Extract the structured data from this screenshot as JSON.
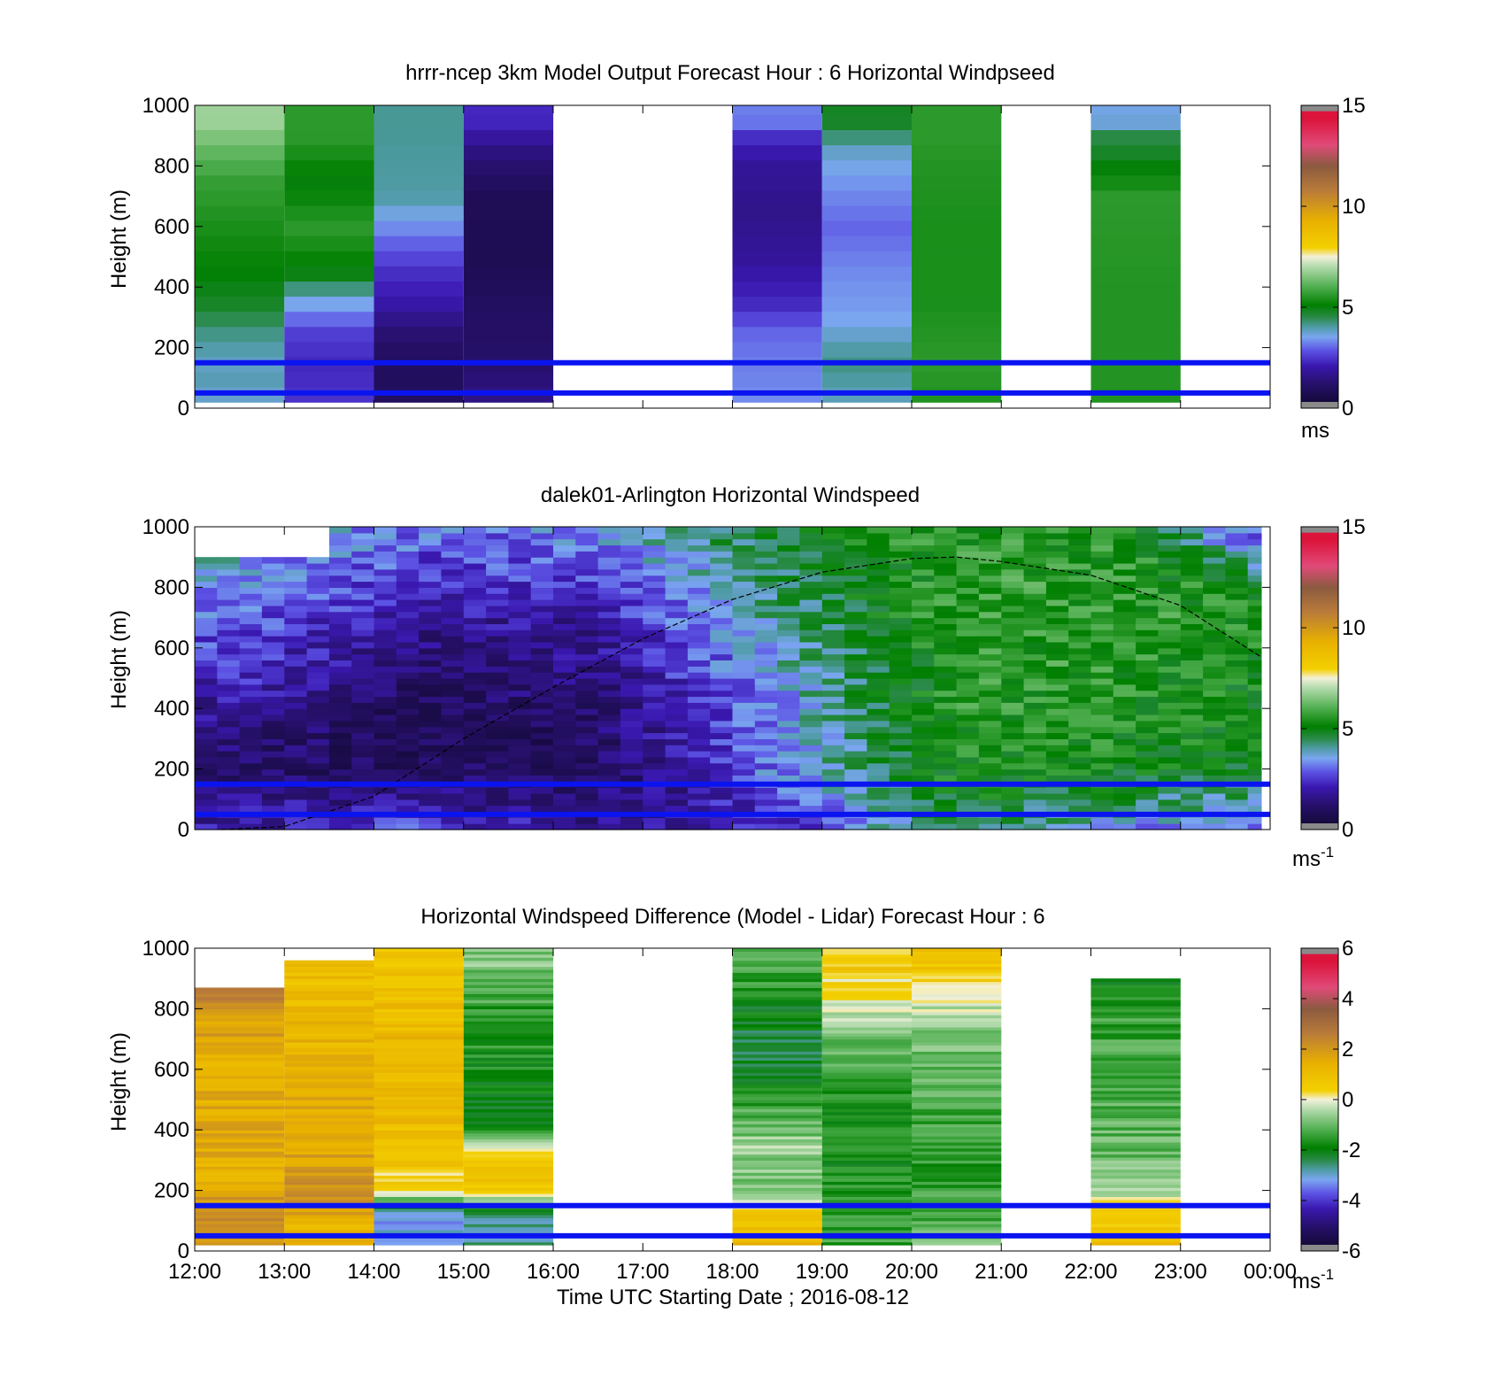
{
  "figure": {
    "xlabel": "Time UTC  Starting Date ; 2016-08-12",
    "x_tick_labels": [
      "12:00",
      "13:00",
      "14:00",
      "15:00",
      "16:00",
      "17:00",
      "18:00",
      "19:00",
      "20:00",
      "21:00",
      "22:00",
      "23:00",
      "00:00"
    ]
  },
  "chart_data": [
    {
      "type": "heatmap",
      "title": "hrrr-ncep 3km Model Output   Forecast Hour : 6 Horizontal Windpseed",
      "ylabel": "Height (m)",
      "xlim": [
        "12:00",
        "00:00"
      ],
      "ylim": [
        0,
        1000
      ],
      "y_ticks": [
        0,
        200,
        400,
        600,
        800,
        1000
      ],
      "colorbar": {
        "min": 0,
        "max": 15,
        "ticks": [
          0,
          5,
          10,
          15
        ],
        "label": "ms",
        "label_sup": ""
      },
      "reference_lines_m": [
        50,
        150
      ],
      "columns": [
        {
          "start": "12:00",
          "end": "13:00",
          "profile_speed": [
            [
              25,
              2.8
            ],
            [
              50,
              4.0
            ],
            [
              150,
              3.8
            ],
            [
              250,
              4.2
            ],
            [
              350,
              4.8
            ],
            [
              500,
              5.2
            ],
            [
              650,
              5.5
            ],
            [
              750,
              5.7
            ],
            [
              850,
              6.2
            ],
            [
              950,
              6.8
            ]
          ]
        },
        {
          "start": "13:00",
          "end": "14:00",
          "profile_speed": [
            [
              25,
              2.6
            ],
            [
              50,
              2.4
            ],
            [
              150,
              2.3
            ],
            [
              250,
              2.6
            ],
            [
              350,
              3.6
            ],
            [
              450,
              5.0
            ],
            [
              600,
              5.6
            ],
            [
              750,
              5.0
            ],
            [
              900,
              5.6
            ]
          ]
        },
        {
          "start": "14:00",
          "end": "15:00",
          "profile_speed": [
            [
              25,
              1.3
            ],
            [
              50,
              0.8
            ],
            [
              150,
              0.9
            ],
            [
              250,
              1.3
            ],
            [
              350,
              2.0
            ],
            [
              450,
              2.4
            ],
            [
              550,
              3.0
            ],
            [
              700,
              4.0
            ],
            [
              900,
              4.1
            ]
          ]
        },
        {
          "start": "15:00",
          "end": "16:00",
          "profile_speed": [
            [
              25,
              1.6
            ],
            [
              50,
              1.5
            ],
            [
              150,
              1.2
            ],
            [
              300,
              1.0
            ],
            [
              500,
              0.6
            ],
            [
              700,
              0.7
            ],
            [
              850,
              1.5
            ],
            [
              950,
              2.3
            ]
          ]
        },
        {
          "start": "18:00",
          "end": "19:00",
          "profile_speed": [
            [
              25,
              3.4
            ],
            [
              50,
              3.3
            ],
            [
              150,
              3.2
            ],
            [
              250,
              3.0
            ],
            [
              350,
              2.3
            ],
            [
              500,
              1.8
            ],
            [
              650,
              1.6
            ],
            [
              800,
              1.8
            ],
            [
              900,
              2.4
            ],
            [
              950,
              3.2
            ]
          ]
        },
        {
          "start": "19:00",
          "end": "20:00",
          "profile_speed": [
            [
              25,
              3.8
            ],
            [
              50,
              3.9
            ],
            [
              150,
              4.2
            ],
            [
              300,
              3.5
            ],
            [
              450,
              3.3
            ],
            [
              600,
              3.0
            ],
            [
              750,
              3.4
            ],
            [
              850,
              3.8
            ],
            [
              950,
              4.8
            ]
          ]
        },
        {
          "start": "20:00",
          "end": "21:00",
          "profile_speed": [
            [
              25,
              5.4
            ],
            [
              50,
              5.5
            ],
            [
              150,
              5.6
            ],
            [
              350,
              5.4
            ],
            [
              600,
              5.4
            ],
            [
              800,
              5.5
            ],
            [
              900,
              5.6
            ]
          ]
        },
        {
          "start": "22:00",
          "end": "23:00",
          "profile_speed": [
            [
              25,
              5.4
            ],
            [
              50,
              5.5
            ],
            [
              150,
              5.5
            ],
            [
              400,
              5.5
            ],
            [
              700,
              5.6
            ],
            [
              800,
              5.0
            ],
            [
              900,
              4.5
            ],
            [
              950,
              3.6
            ]
          ]
        }
      ]
    },
    {
      "type": "heatmap",
      "title": "dalek01-Arlington  Horizontal Windspeed",
      "ylabel": "Height (m)",
      "xlim": [
        "12:00",
        "00:00"
      ],
      "ylim": [
        0,
        1000
      ],
      "y_ticks": [
        0,
        200,
        400,
        600,
        800,
        1000
      ],
      "colorbar": {
        "min": 0,
        "max": 15,
        "ticks": [
          0,
          5,
          10,
          15
        ],
        "label": "ms",
        "label_sup": "-1"
      },
      "reference_lines_m": [
        50,
        150
      ],
      "boundary_layer_curve_m": [
        [
          12.3,
          0
        ],
        [
          13,
          10
        ],
        [
          14,
          110
        ],
        [
          15,
          300
        ],
        [
          16,
          470
        ],
        [
          17,
          630
        ],
        [
          18,
          760
        ],
        [
          19,
          850
        ],
        [
          20,
          895
        ],
        [
          20.5,
          900
        ],
        [
          21,
          885
        ],
        [
          22,
          840
        ],
        [
          23,
          740
        ],
        [
          23.9,
          570
        ]
      ],
      "speed_pattern_keys_hours": [
        12.5,
        14.5,
        16.5,
        18.5,
        20.5,
        22.5,
        23.8
      ],
      "speed_pattern_keys_height_m": [
        20,
        100,
        200,
        350,
        500,
        650,
        800,
        950
      ],
      "speed_pattern_ms": [
        [
          2.0,
          1.6,
          0.9,
          1.5,
          2.3,
          2.8,
          3.4,
          3.8
        ],
        [
          2.6,
          1.7,
          0.9,
          0.6,
          1.0,
          1.6,
          2.2,
          3.0
        ],
        [
          1.6,
          1.3,
          0.9,
          1.1,
          1.5,
          1.7,
          2.6,
          3.2
        ],
        [
          2.4,
          2.5,
          3.3,
          3.3,
          3.5,
          4.0,
          4.3,
          4.8
        ],
        [
          4.6,
          5.0,
          5.3,
          5.5,
          5.6,
          5.6,
          5.7,
          5.6
        ],
        [
          3.5,
          4.4,
          5.1,
          5.4,
          5.4,
          5.7,
          5.6,
          5.4
        ],
        [
          3.2,
          4.0,
          4.9,
          5.0,
          5.2,
          5.3,
          5.2,
          3.0
        ]
      ],
      "missing_bins_approx": [
        [
          "12:00",
          "13:30",
          900,
          1000
        ]
      ]
    },
    {
      "type": "heatmap",
      "title": "Horizontal Windspeed Difference (Model - Lidar) Forecast Hour : 6",
      "ylabel": "Height (m)",
      "xlabel": "Time UTC  Starting Date ; 2016-08-12",
      "xlim": [
        "12:00",
        "00:00"
      ],
      "ylim": [
        0,
        1000
      ],
      "y_ticks": [
        0,
        200,
        400,
        600,
        800,
        1000
      ],
      "colorbar": {
        "min": -6,
        "max": 6,
        "ticks": [
          -6,
          -4,
          -2,
          0,
          2,
          4,
          6
        ],
        "label": "ms",
        "label_sup": "-1"
      },
      "reference_lines_m": [
        50,
        150
      ],
      "columns": [
        {
          "start": "12:00",
          "end": "13:00",
          "top_m": 870,
          "profile_diff": [
            [
              20,
              2.2
            ],
            [
              100,
              2.2
            ],
            [
              250,
              1.4
            ],
            [
              400,
              1.6
            ],
            [
              600,
              1.4
            ],
            [
              750,
              1.8
            ],
            [
              850,
              2.5
            ]
          ]
        },
        {
          "start": "13:00",
          "end": "14:00",
          "top_m": 960,
          "profile_diff": [
            [
              20,
              1.5
            ],
            [
              100,
              1.4
            ],
            [
              200,
              2.2
            ],
            [
              300,
              1.7
            ],
            [
              500,
              1.5
            ],
            [
              700,
              1.2
            ],
            [
              900,
              1.0
            ]
          ]
        },
        {
          "start": "14:00",
          "end": "15:00",
          "top_m": 1000,
          "profile_diff": [
            [
              20,
              -3.3
            ],
            [
              120,
              -3.0
            ],
            [
              200,
              0.3
            ],
            [
              400,
              1.0
            ],
            [
              600,
              1.2
            ],
            [
              800,
              1.0
            ],
            [
              950,
              0.8
            ]
          ]
        },
        {
          "start": "15:00",
          "end": "16:00",
          "top_m": 1000,
          "profile_diff": [
            [
              20,
              -2.8
            ],
            [
              120,
              -2.6
            ],
            [
              220,
              1.0
            ],
            [
              320,
              0.4
            ],
            [
              400,
              -2.0
            ],
            [
              600,
              -1.8
            ],
            [
              800,
              -1.5
            ],
            [
              950,
              -0.8
            ]
          ]
        },
        {
          "start": "18:00",
          "end": "19:00",
          "top_m": 1000,
          "profile_diff": [
            [
              20,
              1.2
            ],
            [
              100,
              1.0
            ],
            [
              200,
              -0.8
            ],
            [
              350,
              -0.6
            ],
            [
              500,
              -1.5
            ],
            [
              650,
              -2.3
            ],
            [
              800,
              -2.0
            ],
            [
              950,
              -1.2
            ]
          ]
        },
        {
          "start": "19:00",
          "end": "20:00",
          "top_m": 1000,
          "profile_diff": [
            [
              20,
              -1.5
            ],
            [
              150,
              -1.6
            ],
            [
              300,
              -1.8
            ],
            [
              500,
              -1.6
            ],
            [
              700,
              -1.0
            ],
            [
              830,
              0.0
            ],
            [
              950,
              0.6
            ]
          ]
        },
        {
          "start": "20:00",
          "end": "21:00",
          "top_m": 1000,
          "profile_diff": [
            [
              20,
              -1.0
            ],
            [
              150,
              -1.4
            ],
            [
              300,
              -1.6
            ],
            [
              500,
              -1.2
            ],
            [
              700,
              -0.9
            ],
            [
              880,
              0.1
            ],
            [
              970,
              1.0
            ]
          ]
        },
        {
          "start": "22:00",
          "end": "23:00",
          "top_m": 900,
          "profile_diff": [
            [
              20,
              1.3
            ],
            [
              120,
              0.4
            ],
            [
              250,
              -0.8
            ],
            [
              450,
              -1.2
            ],
            [
              650,
              -1.3
            ],
            [
              800,
              -1.5
            ],
            [
              880,
              -2.0
            ]
          ]
        }
      ]
    }
  ]
}
